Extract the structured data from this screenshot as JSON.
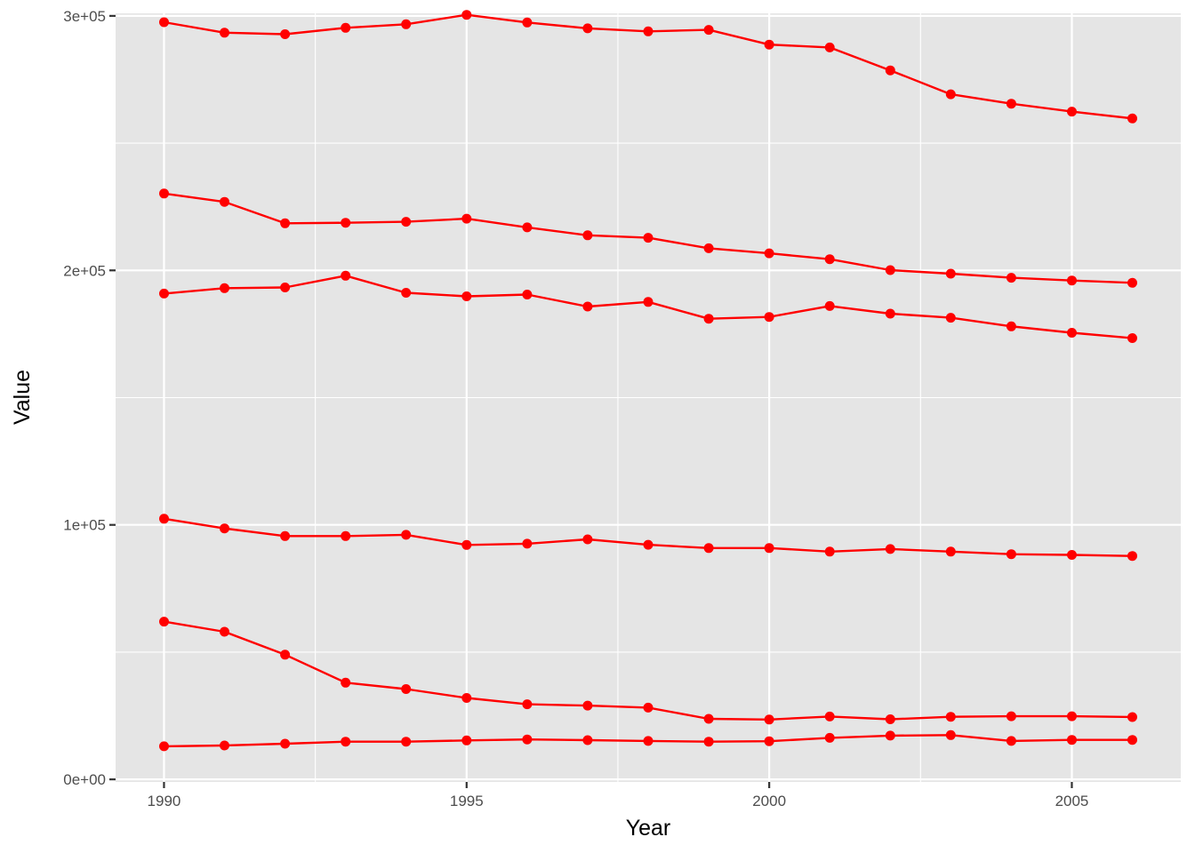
{
  "chart_data": {
    "type": "line",
    "xlabel": "Year",
    "ylabel": "Value",
    "xlim": [
      1989.2,
      2006.8
    ],
    "ylim": [
      -1000,
      301000
    ],
    "x_ticks": [
      1990,
      1995,
      2000,
      2005
    ],
    "x_tick_labels": [
      "1990",
      "1995",
      "2000",
      "2005"
    ],
    "y_ticks": [
      0,
      100000,
      200000,
      300000
    ],
    "y_tick_labels": [
      "0e+00",
      "1e+05",
      "2e+05",
      "3e+05"
    ],
    "grid": true,
    "legend": "none",
    "x": [
      1990,
      1991,
      1992,
      1993,
      1994,
      1995,
      1996,
      1997,
      1998,
      1999,
      2000,
      2001,
      2002,
      2003,
      2004,
      2005,
      2006
    ],
    "series": [
      {
        "values": [
          297500,
          293400,
          292800,
          295300,
          296700,
          300400,
          297400,
          295100,
          293900,
          294500,
          288700,
          287600,
          278600,
          269200,
          265500,
          262400,
          259700
        ]
      },
      {
        "values": [
          230200,
          226900,
          218500,
          218700,
          219100,
          220300,
          216900,
          213800,
          212800,
          208700,
          206700,
          204400,
          200100,
          198700,
          197100,
          196000,
          195100
        ]
      },
      {
        "values": [
          190900,
          193000,
          193300,
          197900,
          191200,
          189800,
          190500,
          185800,
          187600,
          181000,
          181700,
          186000,
          183000,
          181400,
          178000,
          175500,
          173400
        ]
      },
      {
        "values": [
          102400,
          98600,
          95600,
          95600,
          96100,
          92100,
          92600,
          94300,
          92200,
          90900,
          90900,
          89500,
          90500,
          89500,
          88500,
          88200,
          87800
        ]
      },
      {
        "values": [
          62000,
          58000,
          49000,
          38000,
          35500,
          32000,
          29500,
          29000,
          28200,
          23800,
          23500,
          24700,
          23600,
          24600,
          24800,
          24800,
          24500
        ]
      },
      {
        "values": [
          13000,
          13300,
          14000,
          14800,
          14800,
          15300,
          15700,
          15400,
          15100,
          14800,
          15000,
          16300,
          17200,
          17400,
          15100,
          15500,
          15500
        ]
      }
    ],
    "line_color": "#ff0000",
    "panel_bg": "#e5e5e5",
    "grid_color": "#ffffff"
  }
}
